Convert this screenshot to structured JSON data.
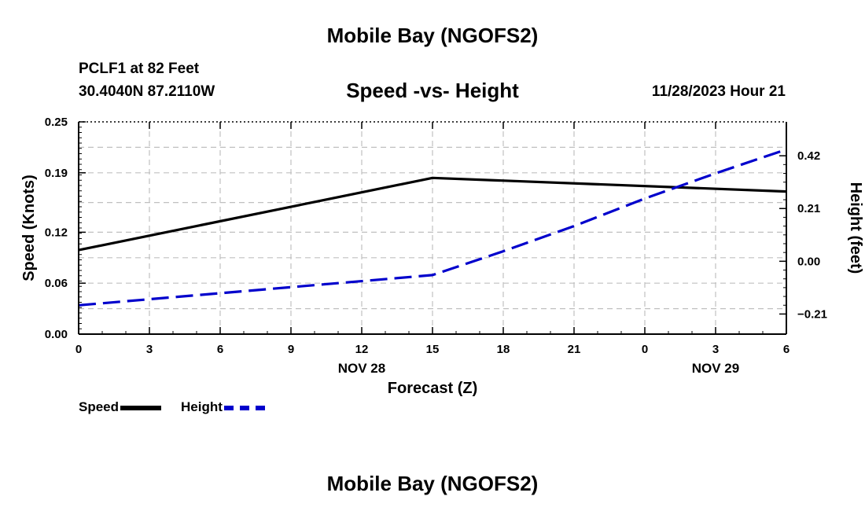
{
  "header": {
    "title": "Mobile Bay (NGOFS2)",
    "station_line1": "PCLF1 at 82 Feet",
    "station_line2": "30.4040N  87.2110W",
    "subtitle": "Speed -vs- Height",
    "datetime": "11/28/2023 Hour 21"
  },
  "footer": {
    "title": "Mobile Bay (NGOFS2)"
  },
  "legend": {
    "speed_label": "Speed",
    "height_label": "Height"
  },
  "chart_data": {
    "type": "line",
    "title": "Speed -vs- Height",
    "xlabel": "Forecast (Z)",
    "ylabel": "Speed (Knots)",
    "y2label": "Height (feet)",
    "x_ticks": [
      "0",
      "3",
      "6",
      "9",
      "12",
      "15",
      "18",
      "21",
      "0",
      "3",
      "6"
    ],
    "x_day_labels": [
      {
        "label": "NOV 28",
        "at_tick": 4
      },
      {
        "label": "NOV 29",
        "at_tick": 9
      }
    ],
    "y_ticks": [
      "0.25",
      "0.19",
      "0.12",
      "0.06",
      "0.00"
    ],
    "y_ticks_values": [
      0.25,
      0.19,
      0.12,
      0.06,
      0.0
    ],
    "y2_ticks": [
      "0.42",
      "0.21",
      "0.00",
      "−0.21"
    ],
    "y2_ticks_values": [
      0.42,
      0.21,
      0.0,
      -0.21
    ],
    "ylim": [
      0.0,
      0.25
    ],
    "y2lim": [
      -0.29,
      0.555
    ],
    "xlim": [
      0,
      30
    ],
    "grid": true,
    "legend_position": "bottom-left",
    "series": [
      {
        "name": "Speed",
        "axis": "left",
        "color": "#000000",
        "style": "solid",
        "x": [
          0,
          15,
          30
        ],
        "values": [
          0.099,
          0.184,
          0.168
        ]
      },
      {
        "name": "Height",
        "axis": "right",
        "color": "#0000cc",
        "style": "dashed",
        "x": [
          0,
          15,
          18,
          21,
          24,
          27,
          30
        ],
        "values": [
          -0.175,
          -0.055,
          0.04,
          0.14,
          0.25,
          0.35,
          0.445
        ]
      }
    ]
  }
}
